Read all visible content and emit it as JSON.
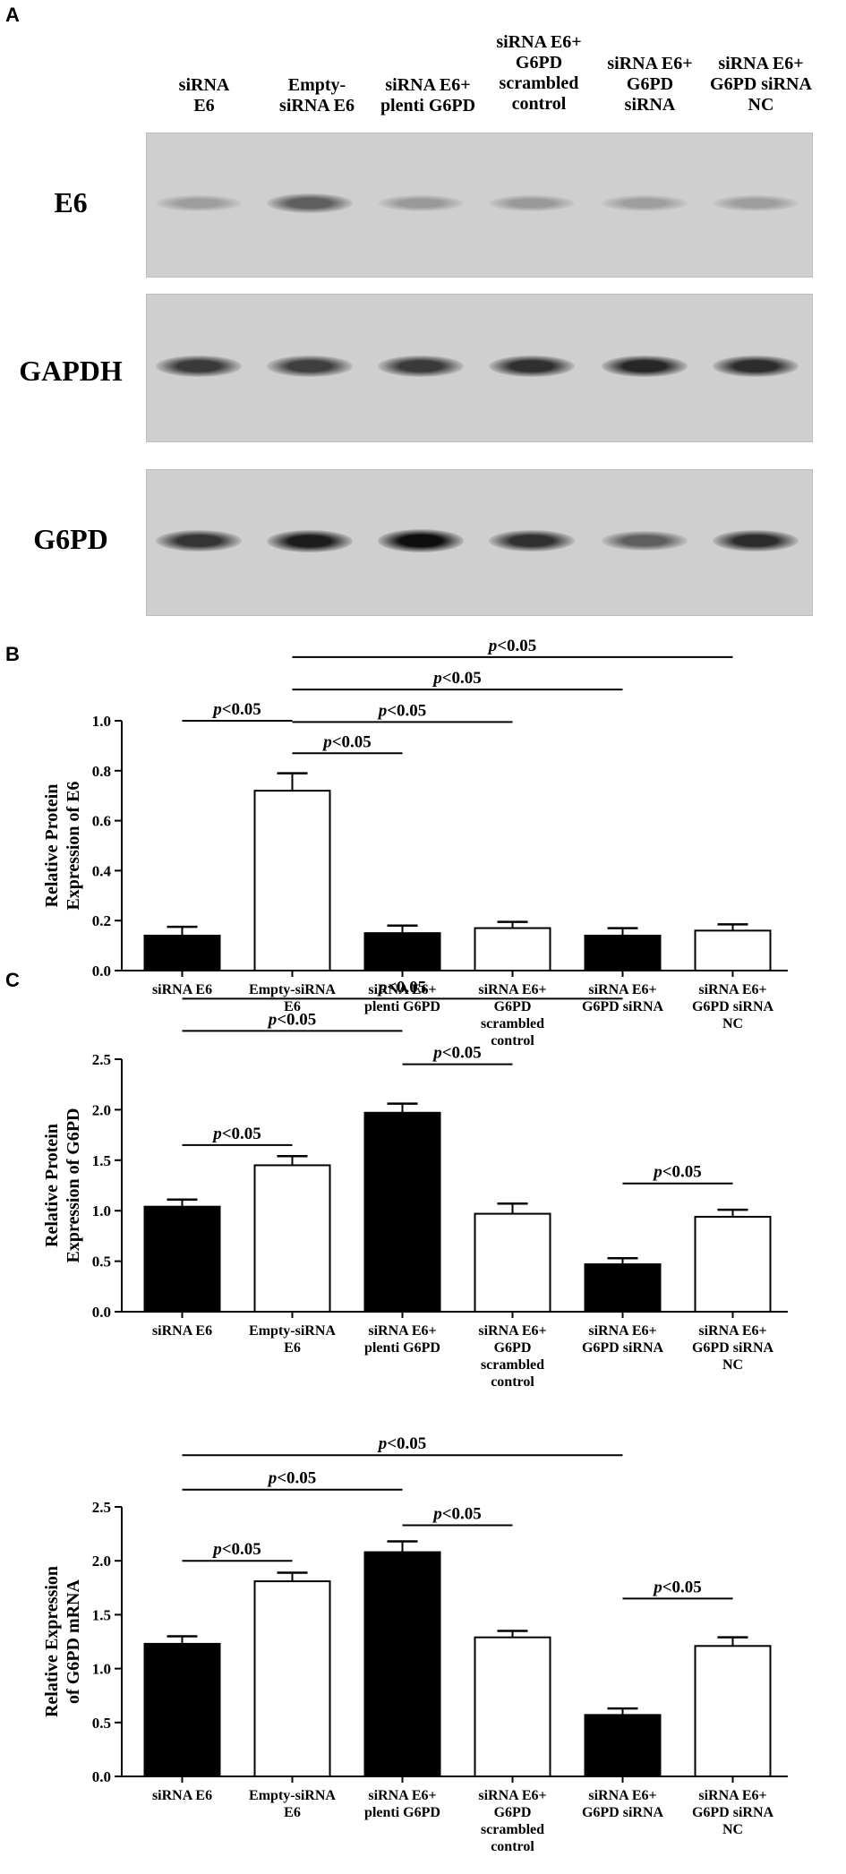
{
  "panels": {
    "a": "A",
    "b": "B",
    "c": "C"
  },
  "lanes": [
    "siRNA\nE6",
    "Empty-\nsiRNA E6",
    "siRNA E6+\nplenti G6PD",
    "siRNA E6+\nG6PD\nscrambled\ncontrol",
    "siRNA E6+\nG6PD\nsiRNA",
    "siRNA E6+\nG6PD siRNA\nNC"
  ],
  "blots": [
    {
      "label": "E6",
      "intensity": [
        0.22,
        0.55,
        0.25,
        0.25,
        0.22,
        0.22
      ]
    },
    {
      "label": "GAPDH",
      "intensity": [
        0.75,
        0.72,
        0.75,
        0.8,
        0.85,
        0.82
      ]
    },
    {
      "label": "G6PD",
      "intensity": [
        0.78,
        0.9,
        0.98,
        0.8,
        0.55,
        0.82
      ]
    }
  ],
  "chart_data": [
    {
      "type": "bar",
      "ylabel": [
        "Relative Protein",
        "Expression of E6"
      ],
      "ylim": [
        0,
        1.0
      ],
      "yticks": [
        "0.0",
        "0.2",
        "0.4",
        "0.6",
        "0.8",
        "1.0"
      ],
      "categories": [
        "siRNA E6",
        "Empty-siRNA\nE6",
        "siRNA E6+\nplenti G6PD",
        "siRNA E6+\nG6PD\nscrambled\ncontrol",
        "siRNA E6+\nG6PD siRNA",
        "siRNA E6+\nG6PD siRNA\nNC"
      ],
      "values": [
        0.14,
        0.72,
        0.15,
        0.17,
        0.14,
        0.16
      ],
      "errors": [
        0.035,
        0.07,
        0.03,
        0.025,
        0.03,
        0.025
      ],
      "fills": [
        "black",
        "white",
        "black",
        "white",
        "black",
        "white"
      ],
      "annotations": [
        {
          "text": "p<0.05",
          "from": 0,
          "to": 1,
          "y": 1.0
        },
        {
          "text": "p<0.05",
          "from": 1,
          "to": 2,
          "y": 0.87
        },
        {
          "text": "p<0.05",
          "from": 1,
          "to": 3,
          "y": 0.995
        },
        {
          "text": "p<0.05",
          "from": 1,
          "to": 4,
          "y": 1.125
        },
        {
          "text": "p<0.05",
          "from": 1,
          "to": 5,
          "y": 1.255
        }
      ]
    },
    {
      "type": "bar",
      "ylabel": [
        "Relative Protein",
        "Expression of G6PD"
      ],
      "ylim": [
        0,
        2.5
      ],
      "yticks": [
        "0.0",
        "0.5",
        "1.0",
        "1.5",
        "2.0",
        "2.5"
      ],
      "categories": [
        "siRNA E6",
        "Empty-siRNA\nE6",
        "siRNA E6+\nplenti G6PD",
        "siRNA E6+\nG6PD\nscrambled\ncontrol",
        "siRNA E6+\nG6PD siRNA",
        "siRNA E6+\nG6PD siRNA\nNC"
      ],
      "values": [
        1.04,
        1.45,
        1.97,
        0.97,
        0.47,
        0.94
      ],
      "errors": [
        0.07,
        0.09,
        0.09,
        0.1,
        0.06,
        0.07
      ],
      "fills": [
        "black",
        "white",
        "black",
        "white",
        "black",
        "white"
      ],
      "annotations": [
        {
          "text": "p<0.05",
          "from": 0,
          "to": 1,
          "y": 1.65
        },
        {
          "text": "p<0.05",
          "from": 0,
          "to": 2,
          "y": 2.78
        },
        {
          "text": "p<0.05",
          "from": 2,
          "to": 3,
          "y": 2.45
        },
        {
          "text": "p<0.05",
          "from": 0,
          "to": 4,
          "y": 3.1
        },
        {
          "text": "p<0.05",
          "from": 4,
          "to": 5,
          "y": 1.27
        }
      ]
    },
    {
      "type": "bar",
      "ylabel": [
        "Relative Expression",
        "of G6PD mRNA"
      ],
      "ylim": [
        0,
        2.5
      ],
      "yticks": [
        "0.0",
        "0.5",
        "1.0",
        "1.5",
        "2.0",
        "2.5"
      ],
      "categories": [
        "siRNA E6",
        "Empty-siRNA\nE6",
        "siRNA E6+\nplenti G6PD",
        "siRNA E6+\nG6PD\nscrambled\ncontrol",
        "siRNA E6+\nG6PD siRNA",
        "siRNA E6+\nG6PD siRNA\nNC"
      ],
      "values": [
        1.23,
        1.81,
        2.08,
        1.29,
        0.57,
        1.21
      ],
      "errors": [
        0.07,
        0.08,
        0.1,
        0.06,
        0.06,
        0.08
      ],
      "fills": [
        "black",
        "white",
        "black",
        "white",
        "black",
        "white"
      ],
      "annotations": [
        {
          "text": "p<0.05",
          "from": 0,
          "to": 1,
          "y": 2.0
        },
        {
          "text": "p<0.05",
          "from": 0,
          "to": 2,
          "y": 2.66
        },
        {
          "text": "p<0.05",
          "from": 2,
          "to": 3,
          "y": 2.33
        },
        {
          "text": "p<0.05",
          "from": 0,
          "to": 4,
          "y": 2.98
        },
        {
          "text": "p<0.05",
          "from": 4,
          "to": 5,
          "y": 1.65
        }
      ]
    }
  ]
}
